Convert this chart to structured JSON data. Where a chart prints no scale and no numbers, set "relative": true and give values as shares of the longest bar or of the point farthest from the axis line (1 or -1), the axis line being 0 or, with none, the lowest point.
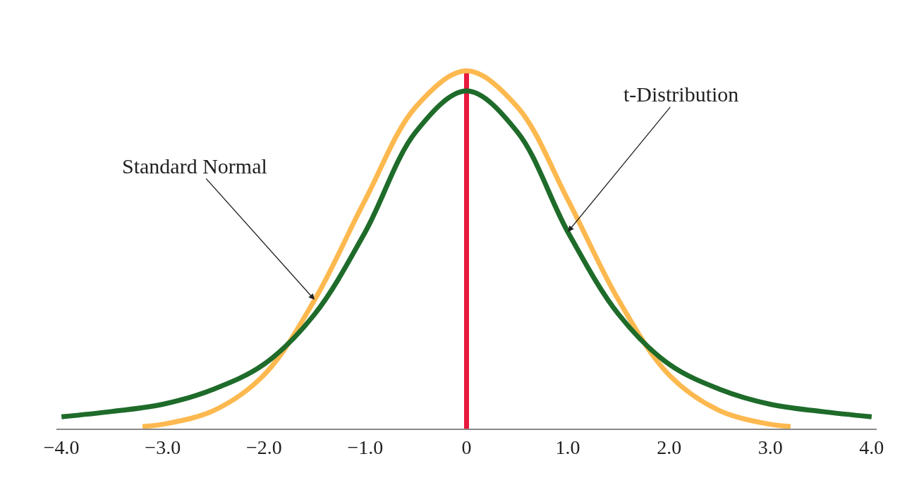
{
  "chart_data": {
    "type": "line",
    "relative": true,
    "xlim": [
      -4.05,
      4.05
    ],
    "xticks": [
      {
        "value": -4,
        "label": "−4.0"
      },
      {
        "value": -3,
        "label": "−3.0"
      },
      {
        "value": -2,
        "label": "−2.0"
      },
      {
        "value": -1,
        "label": "−1.0"
      },
      0,
      {
        "value": 1,
        "label": "1.0"
      },
      {
        "value": 2,
        "label": "2.0"
      },
      {
        "value": 3,
        "label": "3.0"
      },
      {
        "value": 4,
        "label": "4.0"
      }
    ],
    "series": [
      {
        "color": "#fdb94f",
        "x": [
          -3.2,
          -3,
          -2.5,
          -2,
          -1.5,
          -1,
          -0.5,
          0,
          0.5,
          1,
          1.5,
          2,
          2.5,
          3,
          3.2
        ],
        "values": [
          0.006,
          0.012,
          0.05,
          0.15,
          0.36,
          0.64,
          0.9,
          1,
          0.9,
          0.64,
          0.36,
          0.15,
          0.05,
          0.012,
          0.006
        ]
      },
      {
        "color": "#1e6b2a",
        "x": [
          -4,
          -3.5,
          -3,
          -2.5,
          -2,
          -1.5,
          -1,
          -0.5,
          0,
          0.5,
          1,
          1.5,
          2,
          2.5,
          3,
          3.5,
          4
        ],
        "values": [
          0.033,
          0.048,
          0.068,
          0.11,
          0.18,
          0.32,
          0.55,
          0.83,
          0.944,
          0.83,
          0.55,
          0.32,
          0.18,
          0.11,
          0.068,
          0.048,
          0.033
        ]
      }
    ],
    "ref_lines": [
      {
        "axis": "x",
        "value": 0,
        "color": "#e8193c"
      }
    ],
    "annotations": [
      {
        "text": "Standard Normal",
        "x": -1.5,
        "y": 0.36
      },
      {
        "text": "t-Distribution",
        "x": 1.0,
        "y": 0.55
      }
    ],
    "grid": false,
    "marker": "none",
    "line_style": "solid"
  }
}
